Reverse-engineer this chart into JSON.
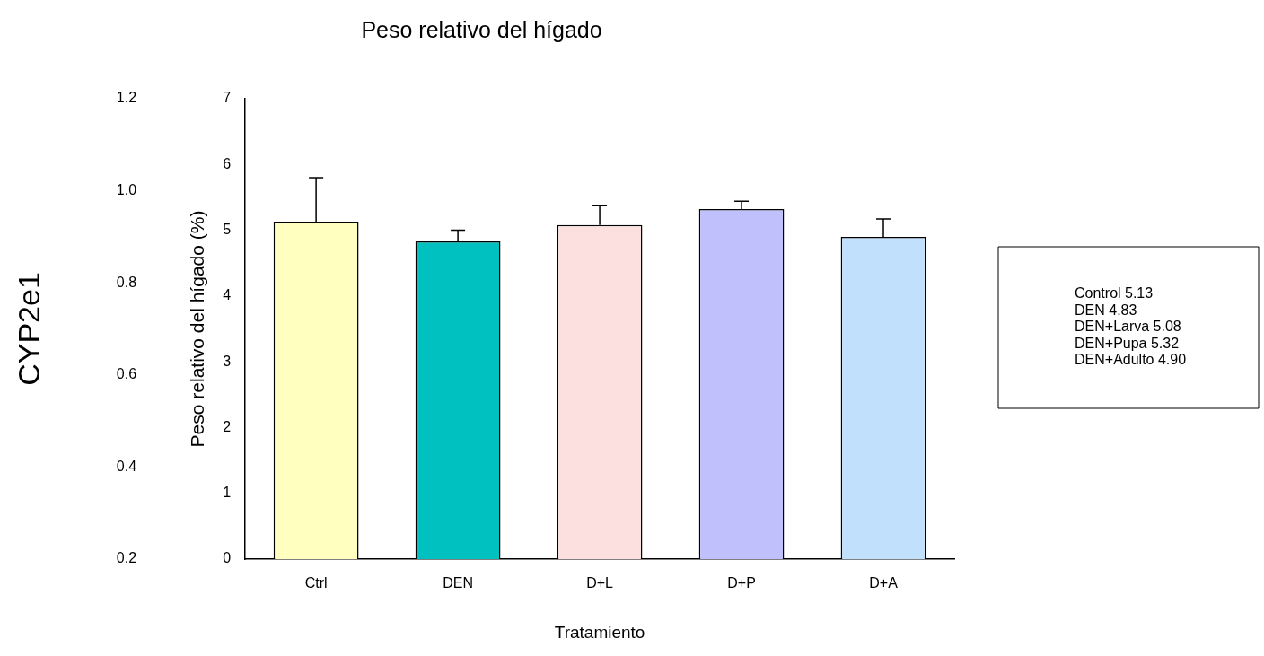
{
  "chart_data": {
    "type": "bar",
    "title": "Peso relativo del hígado",
    "xlabel": "Tratamiento",
    "ylabel": "Peso relativo del hígado (%)",
    "y2label": "CYP2e1",
    "categories": [
      "Ctrl",
      "DEN",
      "D+L",
      "D+P",
      "D+A"
    ],
    "values": [
      5.13,
      4.83,
      5.08,
      5.32,
      4.9
    ],
    "colors": [
      "#ffffc0",
      "#00c0c0",
      "#fce0e0",
      "#c0c0fc",
      "#c0e0fc"
    ],
    "errors": [
      [
        5.13,
        5.8
      ],
      [
        4.83,
        5.0
      ],
      [
        5.08,
        5.38
      ],
      [
        5.32,
        5.44
      ],
      [
        4.9,
        5.17
      ]
    ],
    "ylim": [
      0,
      7
    ],
    "yticks": [
      0,
      1,
      2,
      3,
      4,
      5,
      6,
      7
    ],
    "y2lim": [
      0.2,
      1.2
    ],
    "y2ticks": [
      0.2,
      0.4,
      0.6,
      0.8,
      {
        "value": 1,
        "label": "1.0"
      },
      1.2
    ],
    "annotations": [
      "Control 5.13",
      "DEN 4.83",
      "DEN+Larva 5.08",
      "DEN+Pupa 5.32",
      "DEN+Adulto 4.90"
    ],
    "grid": false,
    "legend": false
  }
}
